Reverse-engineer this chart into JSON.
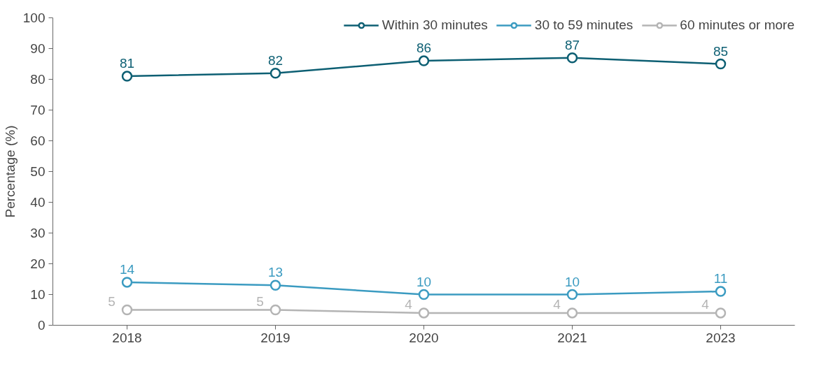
{
  "chart_data": {
    "type": "line",
    "ylabel": "Percentage (%)",
    "categories": [
      "2018",
      "2019",
      "2020",
      "2021",
      "2023"
    ],
    "series": [
      {
        "name": "Within 30 minutes",
        "color": "#0d5f73",
        "values": [
          81,
          82,
          86,
          87,
          85
        ]
      },
      {
        "name": "30 to 59 minutes",
        "color": "#3b9bc1",
        "values": [
          14,
          13,
          10,
          10,
          11
        ]
      },
      {
        "name": "60 minutes or more",
        "color": "#b4b4b4",
        "values": [
          5,
          5,
          4,
          4,
          4
        ]
      }
    ],
    "ylim": [
      0,
      100
    ],
    "yticks": [
      0,
      10,
      20,
      30,
      40,
      50,
      60,
      70,
      80,
      90,
      100
    ],
    "grid": false,
    "legend": "top right",
    "marker": "circle",
    "line_style": "solid",
    "data_labels": true
  }
}
